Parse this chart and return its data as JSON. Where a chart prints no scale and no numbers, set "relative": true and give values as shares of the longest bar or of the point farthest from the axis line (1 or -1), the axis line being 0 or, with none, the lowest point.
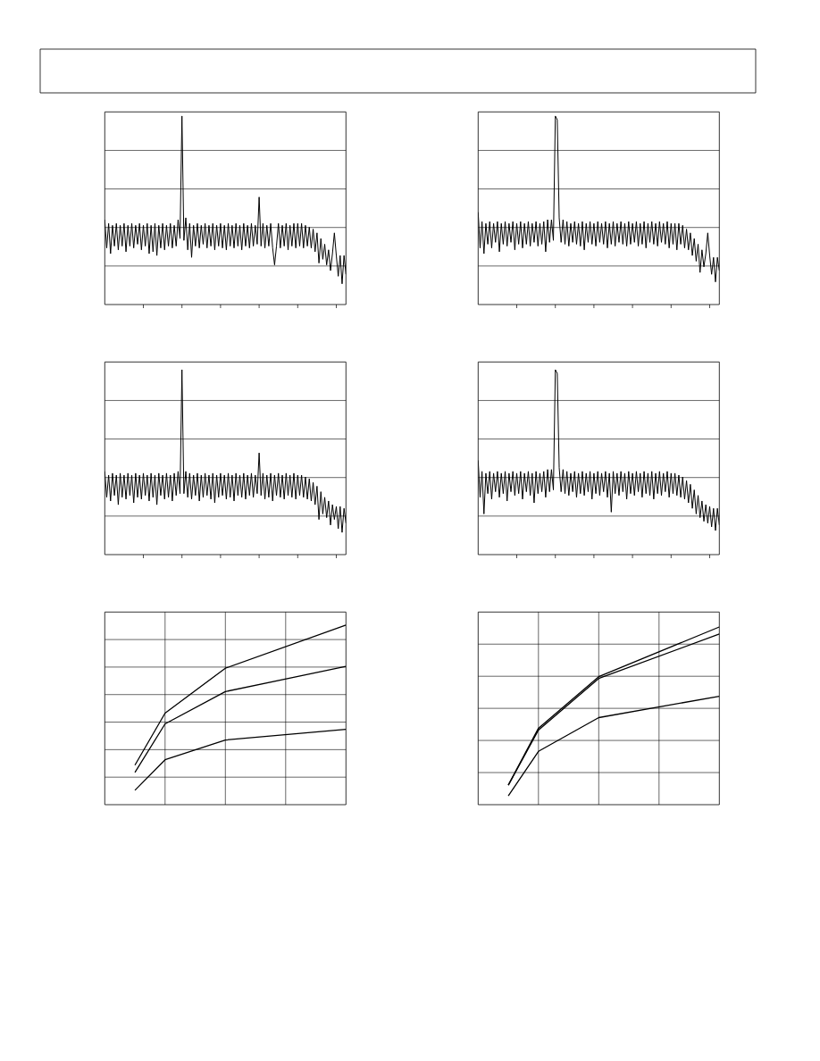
{
  "chart_data": [
    {
      "type": "line",
      "relative": true,
      "grid": "y",
      "color": "#000000",
      "categories": [
        null,
        null,
        null,
        null,
        null,
        null,
        null,
        null,
        null,
        null,
        null,
        null,
        null,
        null,
        null,
        null,
        null,
        null,
        null,
        null,
        null,
        null,
        null,
        null,
        null,
        null,
        null,
        null,
        null,
        null,
        null,
        null,
        null,
        null,
        null,
        null,
        null,
        null,
        null,
        null,
        null,
        null,
        null,
        null,
        null,
        null,
        null,
        null,
        null,
        null,
        null,
        null,
        null,
        null,
        null,
        null,
        null,
        null,
        null,
        null,
        null,
        null,
        null,
        null,
        null,
        null,
        null,
        null,
        null,
        null,
        null,
        null,
        null,
        null,
        null,
        null,
        null,
        null,
        null,
        null,
        null,
        null,
        null,
        null,
        null,
        null,
        null,
        null,
        null,
        null,
        null,
        null,
        null,
        null,
        null,
        null,
        null,
        null,
        null,
        null,
        null,
        null,
        null,
        null,
        null,
        null,
        null,
        null,
        null,
        null,
        null,
        null,
        null,
        null,
        null,
        null,
        null,
        null,
        null,
        null,
        null,
        null,
        null,
        null,
        null,
        null
      ],
      "values": [
        0.45,
        0.3,
        0.43,
        0.27,
        0.42,
        0.31,
        0.43,
        0.29,
        0.42,
        0.31,
        0.43,
        0.28,
        0.42,
        0.31,
        0.43,
        0.3,
        0.42,
        0.32,
        0.43,
        0.29,
        0.42,
        0.31,
        0.43,
        0.27,
        0.42,
        0.28,
        0.43,
        0.26,
        0.42,
        0.3,
        0.43,
        0.29,
        0.42,
        0.31,
        0.43,
        0.3,
        0.42,
        0.31,
        0.45,
        0.35,
        1,
        0.34,
        0.46,
        0.29,
        0.43,
        0.25,
        0.42,
        0.31,
        0.43,
        0.3,
        0.42,
        0.32,
        0.43,
        0.3,
        0.42,
        0.31,
        0.43,
        0.29,
        0.42,
        0.31,
        0.43,
        0.3,
        0.42,
        0.29,
        0.43,
        0.31,
        0.42,
        0.3,
        0.43,
        0.31,
        0.42,
        0.29,
        0.43,
        0.31,
        0.42,
        0.3,
        0.43,
        0.31,
        0.42,
        0.32,
        0.57,
        0.31,
        0.43,
        0.3,
        0.42,
        0.31,
        0.43,
        0.3,
        0.21,
        0.31,
        0.43,
        0.3,
        0.42,
        0.31,
        0.43,
        0.29,
        0.42,
        0.31,
        0.43,
        0.3,
        0.43,
        0.31,
        0.43,
        0.3,
        0.42,
        0.31,
        0.41,
        0.3,
        0.4,
        0.28,
        0.38,
        0.22,
        0.35,
        0.24,
        0.32,
        0.21,
        0.29,
        0.18,
        0.27,
        0.38,
        0.26,
        0.15,
        0.26,
        0.11,
        0.26,
        0.16
      ]
    },
    {
      "type": "line",
      "relative": true,
      "grid": "y",
      "color": "#000000",
      "categories": [
        null,
        null,
        null,
        null,
        null,
        null,
        null,
        null,
        null,
        null,
        null,
        null,
        null,
        null,
        null,
        null,
        null,
        null,
        null,
        null,
        null,
        null,
        null,
        null,
        null,
        null,
        null,
        null,
        null,
        null,
        null,
        null,
        null,
        null,
        null,
        null,
        null,
        null,
        null,
        null,
        null,
        null,
        null,
        null,
        null,
        null,
        null,
        null,
        null,
        null,
        null,
        null,
        null,
        null,
        null,
        null,
        null,
        null,
        null,
        null,
        null,
        null,
        null,
        null,
        null,
        null,
        null,
        null,
        null,
        null,
        null,
        null,
        null,
        null,
        null,
        null,
        null,
        null,
        null,
        null,
        null,
        null,
        null,
        null,
        null,
        null,
        null,
        null,
        null,
        null,
        null,
        null,
        null,
        null,
        null,
        null,
        null,
        null,
        null,
        null,
        null,
        null,
        null,
        null,
        null,
        null,
        null,
        null,
        null,
        null,
        null,
        null,
        null,
        null,
        null,
        null,
        null,
        null,
        null,
        null,
        null,
        null,
        null,
        null,
        null,
        null
      ],
      "values": [
        0.49,
        0.3,
        0.44,
        0.27,
        0.43,
        0.32,
        0.44,
        0.3,
        0.43,
        0.33,
        0.44,
        0.28,
        0.43,
        0.32,
        0.44,
        0.31,
        0.43,
        0.33,
        0.44,
        0.29,
        0.43,
        0.32,
        0.44,
        0.3,
        0.43,
        0.32,
        0.44,
        0.31,
        0.43,
        0.33,
        0.44,
        0.31,
        0.43,
        0.32,
        0.44,
        0.28,
        0.45,
        0.33,
        0.45,
        0.34,
        1,
        0.98,
        0.46,
        0.33,
        0.45,
        0.32,
        0.44,
        0.31,
        0.43,
        0.33,
        0.44,
        0.32,
        0.43,
        0.31,
        0.44,
        0.29,
        0.43,
        0.33,
        0.44,
        0.32,
        0.43,
        0.31,
        0.44,
        0.33,
        0.43,
        0.32,
        0.44,
        0.3,
        0.43,
        0.32,
        0.44,
        0.31,
        0.43,
        0.33,
        0.44,
        0.32,
        0.43,
        0.31,
        0.44,
        0.32,
        0.43,
        0.33,
        0.44,
        0.31,
        0.43,
        0.32,
        0.44,
        0.3,
        0.43,
        0.33,
        0.44,
        0.32,
        0.43,
        0.31,
        0.44,
        0.33,
        0.43,
        0.32,
        0.44,
        0.3,
        0.43,
        0.32,
        0.43,
        0.29,
        0.43,
        0.32,
        0.42,
        0.3,
        0.4,
        0.29,
        0.38,
        0.26,
        0.35,
        0.23,
        0.32,
        0.17,
        0.29,
        0.2,
        0.27,
        0.38,
        0.26,
        0.16,
        0.25,
        0.12,
        0.25,
        0.18
      ]
    },
    {
      "type": "line",
      "relative": true,
      "grid": "y",
      "color": "#000000",
      "categories": [
        null,
        null,
        null,
        null,
        null,
        null,
        null,
        null,
        null,
        null,
        null,
        null,
        null,
        null,
        null,
        null,
        null,
        null,
        null,
        null,
        null,
        null,
        null,
        null,
        null,
        null,
        null,
        null,
        null,
        null,
        null,
        null,
        null,
        null,
        null,
        null,
        null,
        null,
        null,
        null,
        null,
        null,
        null,
        null,
        null,
        null,
        null,
        null,
        null,
        null,
        null,
        null,
        null,
        null,
        null,
        null,
        null,
        null,
        null,
        null,
        null,
        null,
        null,
        null,
        null,
        null,
        null,
        null,
        null,
        null,
        null,
        null,
        null,
        null,
        null,
        null,
        null,
        null,
        null,
        null,
        null,
        null,
        null,
        null,
        null,
        null,
        null,
        null,
        null,
        null,
        null,
        null,
        null,
        null,
        null,
        null,
        null,
        null,
        null,
        null,
        null,
        null,
        null,
        null,
        null,
        null,
        null,
        null,
        null,
        null,
        null,
        null,
        null,
        null,
        null,
        null,
        null,
        null,
        null,
        null,
        null,
        null,
        null,
        null,
        null,
        null
      ],
      "values": [
        0.45,
        0.31,
        0.43,
        0.29,
        0.44,
        0.32,
        0.43,
        0.27,
        0.44,
        0.31,
        0.43,
        0.3,
        0.44,
        0.32,
        0.43,
        0.28,
        0.44,
        0.31,
        0.43,
        0.3,
        0.44,
        0.32,
        0.43,
        0.29,
        0.44,
        0.31,
        0.43,
        0.27,
        0.44,
        0.32,
        0.43,
        0.3,
        0.44,
        0.31,
        0.43,
        0.29,
        0.44,
        0.32,
        0.45,
        0.33,
        1,
        0.33,
        0.45,
        0.31,
        0.44,
        0.3,
        0.43,
        0.32,
        0.44,
        0.29,
        0.43,
        0.31,
        0.44,
        0.32,
        0.43,
        0.3,
        0.44,
        0.28,
        0.43,
        0.31,
        0.44,
        0.32,
        0.43,
        0.3,
        0.44,
        0.31,
        0.43,
        0.29,
        0.44,
        0.32,
        0.43,
        0.31,
        0.44,
        0.3,
        0.43,
        0.32,
        0.44,
        0.31,
        0.43,
        0.33,
        0.55,
        0.32,
        0.44,
        0.3,
        0.43,
        0.31,
        0.44,
        0.29,
        0.43,
        0.32,
        0.44,
        0.31,
        0.43,
        0.3,
        0.44,
        0.32,
        0.43,
        0.31,
        0.44,
        0.3,
        0.43,
        0.32,
        0.43,
        0.31,
        0.42,
        0.3,
        0.41,
        0.29,
        0.39,
        0.27,
        0.37,
        0.19,
        0.34,
        0.22,
        0.31,
        0.2,
        0.29,
        0.16,
        0.27,
        0.19,
        0.26,
        0.14,
        0.26,
        0.12,
        0.25,
        0.17
      ]
    },
    {
      "type": "line",
      "relative": true,
      "grid": "y",
      "color": "#000000",
      "categories": [
        null,
        null,
        null,
        null,
        null,
        null,
        null,
        null,
        null,
        null,
        null,
        null,
        null,
        null,
        null,
        null,
        null,
        null,
        null,
        null,
        null,
        null,
        null,
        null,
        null,
        null,
        null,
        null,
        null,
        null,
        null,
        null,
        null,
        null,
        null,
        null,
        null,
        null,
        null,
        null,
        null,
        null,
        null,
        null,
        null,
        null,
        null,
        null,
        null,
        null,
        null,
        null,
        null,
        null,
        null,
        null,
        null,
        null,
        null,
        null,
        null,
        null,
        null,
        null,
        null,
        null,
        null,
        null,
        null,
        null,
        null,
        null,
        null,
        null,
        null,
        null,
        null,
        null,
        null,
        null,
        null,
        null,
        null,
        null,
        null,
        null,
        null,
        null,
        null,
        null,
        null,
        null,
        null,
        null,
        null,
        null,
        null,
        null,
        null,
        null,
        null,
        null,
        null,
        null,
        null,
        null,
        null,
        null,
        null,
        null,
        null,
        null,
        null,
        null,
        null,
        null,
        null,
        null,
        null,
        null,
        null,
        null,
        null,
        null,
        null,
        null
      ],
      "values": [
        0.51,
        0.31,
        0.45,
        0.22,
        0.44,
        0.33,
        0.45,
        0.3,
        0.44,
        0.34,
        0.45,
        0.31,
        0.44,
        0.33,
        0.45,
        0.29,
        0.44,
        0.34,
        0.45,
        0.32,
        0.44,
        0.33,
        0.45,
        0.3,
        0.44,
        0.34,
        0.45,
        0.32,
        0.44,
        0.28,
        0.45,
        0.33,
        0.44,
        0.34,
        0.45,
        0.31,
        0.46,
        0.34,
        0.46,
        0.35,
        1,
        0.98,
        0.47,
        0.34,
        0.46,
        0.33,
        0.45,
        0.32,
        0.44,
        0.34,
        0.45,
        0.31,
        0.44,
        0.33,
        0.45,
        0.32,
        0.44,
        0.34,
        0.45,
        0.3,
        0.44,
        0.33,
        0.45,
        0.32,
        0.44,
        0.34,
        0.45,
        0.31,
        0.44,
        0.23,
        0.45,
        0.33,
        0.44,
        0.32,
        0.45,
        0.34,
        0.44,
        0.3,
        0.45,
        0.33,
        0.44,
        0.32,
        0.45,
        0.34,
        0.44,
        0.31,
        0.45,
        0.33,
        0.44,
        0.32,
        0.45,
        0.3,
        0.44,
        0.33,
        0.45,
        0.32,
        0.44,
        0.34,
        0.45,
        0.31,
        0.44,
        0.33,
        0.44,
        0.32,
        0.43,
        0.31,
        0.42,
        0.3,
        0.4,
        0.28,
        0.38,
        0.25,
        0.35,
        0.22,
        0.32,
        0.2,
        0.29,
        0.18,
        0.27,
        0.17,
        0.26,
        0.15,
        0.25,
        0.13,
        0.25,
        0.16
      ]
    },
    {
      "type": "line",
      "relative": true,
      "grid": true,
      "categories": [
        null,
        null,
        null,
        null,
        null,
        null,
        null,
        null,
        null
      ],
      "series": [
        {
          "color": "#000000",
          "values": [
            null,
            0.22,
            0.51,
            null,
            0.76,
            null,
            null,
            null,
            1
          ]
        },
        {
          "color": "#000000",
          "values": [
            null,
            0.18,
            0.45,
            null,
            0.63,
            null,
            null,
            null,
            0.77
          ]
        },
        {
          "color": "#000000",
          "values": [
            null,
            0.08,
            0.25,
            null,
            0.36,
            null,
            null,
            null,
            0.42
          ]
        }
      ]
    },
    {
      "type": "line",
      "relative": true,
      "grid": true,
      "categories": [
        null,
        null,
        null,
        null,
        null,
        null,
        null,
        null,
        null
      ],
      "series": [
        {
          "color": "#000000",
          "values": [
            null,
            0.11,
            0.43,
            null,
            0.72,
            null,
            null,
            null,
            1
          ]
        },
        {
          "color": "#000000",
          "values": [
            null,
            0.11,
            0.42,
            null,
            0.71,
            null,
            null,
            null,
            0.96
          ]
        },
        {
          "color": "#000000",
          "values": [
            null,
            0.05,
            0.3,
            null,
            0.49,
            null,
            null,
            null,
            0.61
          ]
        }
      ]
    }
  ]
}
